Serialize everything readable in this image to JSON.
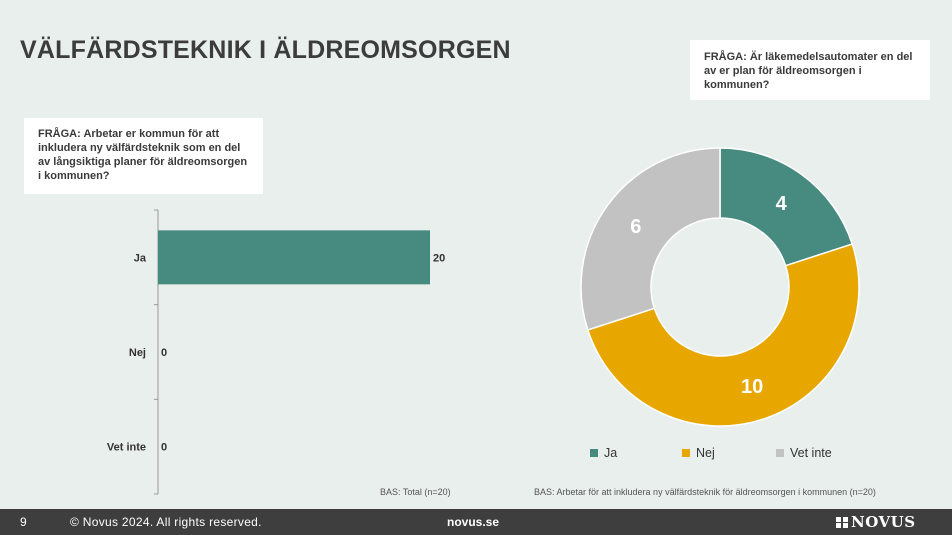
{
  "title": "VÄLFÄRDSTEKNIK I ÄLDREOMSORGEN",
  "bar_question": {
    "label": "FRÅGA:",
    "text": "Arbetar er kommun för att inkludera ny välfärdsteknik som en del av långsiktiga planer för äldreomsorgen i kommunen?"
  },
  "pie_question": {
    "label": "FRÅGA:",
    "text": "Är läkemedelsautomater en del av er plan för äldreomsorgen i kommunen?"
  },
  "bar_base": "BAS: Total (n=20)",
  "pie_base": "BAS: Arbetar för att inkludera ny välfärdsteknik för äldreomsorgen i kommunen (n=20)",
  "colors": {
    "teal": "#468a80",
    "yellow": "#e8a600",
    "grey": "#c2c2c2"
  },
  "chart_data": [
    {
      "type": "bar",
      "orientation": "horizontal",
      "categories": [
        "Ja",
        "Nej",
        "Vet inte"
      ],
      "values": [
        20,
        0,
        0
      ],
      "xlim": [
        0,
        20
      ],
      "color": "#468a80",
      "data_labels": true
    },
    {
      "type": "pie",
      "variant": "donut",
      "labels": [
        "Ja",
        "Nej",
        "Vet inte"
      ],
      "values": [
        4,
        10,
        6
      ],
      "colors": [
        "#468a80",
        "#e8a600",
        "#c2c2c2"
      ],
      "legend_position": "bottom",
      "data_labels": true
    }
  ],
  "footer": {
    "page": "9",
    "copyright": "© Novus 2024. All rights reserved.",
    "site": "novus.se",
    "logo": "NOVUS"
  }
}
